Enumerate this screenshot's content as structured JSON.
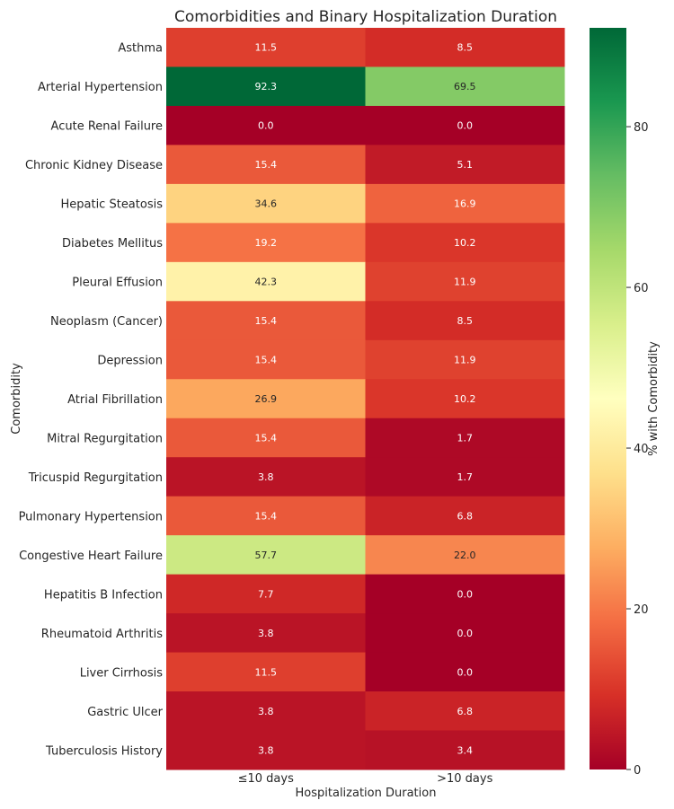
{
  "chart_data": {
    "type": "heatmap",
    "title": "Comorbidities and Binary Hospitalization Duration",
    "xlabel": "Hospitalization Duration",
    "ylabel": "Comorbidity",
    "columns": [
      "≤10 days",
      ">10 days"
    ],
    "rows": [
      "Asthma",
      "Arterial Hypertension",
      "Acute Renal Failure",
      "Chronic Kidney Disease",
      "Hepatic Steatosis",
      "Diabetes Mellitus",
      "Pleural Effusion",
      "Neoplasm (Cancer)",
      "Depression",
      "Atrial Fibrillation",
      "Mitral Regurgitation",
      "Tricuspid Regurgitation",
      "Pulmonary Hypertension",
      "Congestive Heart Failure",
      "Hepatitis B Infection",
      "Rheumatoid Arthritis",
      "Liver Cirrhosis",
      "Gastric Ulcer",
      "Tuberculosis History"
    ],
    "values": [
      [
        11.5,
        8.5
      ],
      [
        92.3,
        69.5
      ],
      [
        0.0,
        0.0
      ],
      [
        15.4,
        5.1
      ],
      [
        34.6,
        16.9
      ],
      [
        19.2,
        10.2
      ],
      [
        42.3,
        11.9
      ],
      [
        15.4,
        8.5
      ],
      [
        15.4,
        11.9
      ],
      [
        26.9,
        10.2
      ],
      [
        15.4,
        1.7
      ],
      [
        3.8,
        1.7
      ],
      [
        15.4,
        6.8
      ],
      [
        57.7,
        22.0
      ],
      [
        7.7,
        0.0
      ],
      [
        3.8,
        0.0
      ],
      [
        11.5,
        0.0
      ],
      [
        3.8,
        6.8
      ],
      [
        3.8,
        3.4
      ]
    ],
    "colorbar": {
      "label": "% with Comorbidity",
      "range": [
        0,
        92.3
      ],
      "ticks": [
        0,
        20,
        40,
        60,
        80
      ],
      "colormap": "RdYlGn"
    }
  }
}
